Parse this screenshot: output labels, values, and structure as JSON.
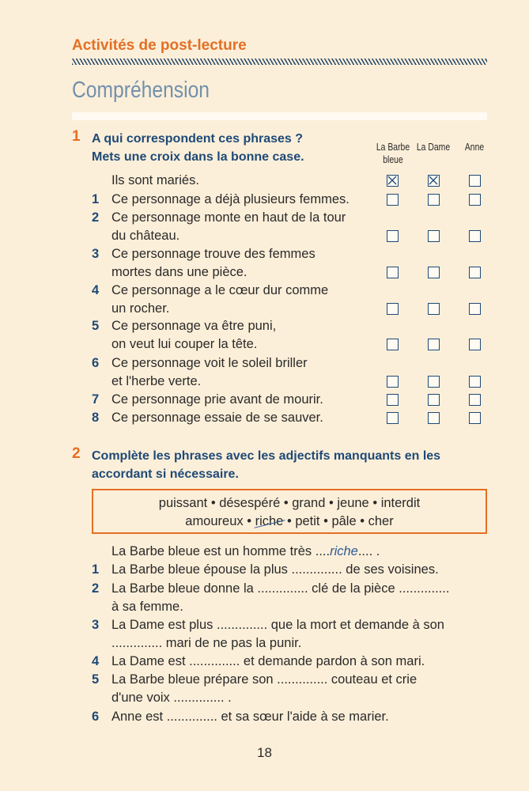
{
  "section_title": "Activités de post-lecture",
  "page_title": "Compréhension",
  "colors": {
    "accent": "#e46f24",
    "blue": "#1e4a78",
    "title": "#7290ad"
  },
  "q1": {
    "number": "1",
    "instruction_line1": "A qui correspondent ces phrases ?",
    "instruction_line2": "Mets une croix dans la bonne case.",
    "columns": [
      "La Barbe bleue",
      "La Dame",
      "Anne"
    ],
    "column_lines": [
      [
        "La Barbe",
        "bleue"
      ],
      [
        "La Dame"
      ],
      [
        "Anne"
      ]
    ],
    "items": [
      {
        "n": "",
        "lines": [
          "Ils sont mariés."
        ],
        "checked": [
          true,
          true,
          false
        ]
      },
      {
        "n": "1",
        "lines": [
          "Ce personnage a déjà plusieurs femmes."
        ],
        "checked": [
          false,
          false,
          false
        ]
      },
      {
        "n": "2",
        "lines": [
          "Ce personnage monte en haut de la tour",
          "du château."
        ],
        "checked": [
          false,
          false,
          false
        ]
      },
      {
        "n": "3",
        "lines": [
          "Ce personnage trouve des femmes",
          "mortes dans une pièce."
        ],
        "checked": [
          false,
          false,
          false
        ]
      },
      {
        "n": "4",
        "lines": [
          "Ce personnage a le cœur dur comme",
          "un rocher."
        ],
        "checked": [
          false,
          false,
          false
        ]
      },
      {
        "n": "5",
        "lines": [
          "Ce personnage va être puni,",
          "on veut lui couper la tête."
        ],
        "checked": [
          false,
          false,
          false
        ]
      },
      {
        "n": "6",
        "lines": [
          "Ce personnage voit le soleil briller",
          "et l'herbe verte."
        ],
        "checked": [
          false,
          false,
          false
        ]
      },
      {
        "n": "7",
        "lines": [
          "Ce personnage prie avant de mourir."
        ],
        "checked": [
          false,
          false,
          false
        ]
      },
      {
        "n": "8",
        "lines": [
          "Ce personnage essaie de se sauver."
        ],
        "checked": [
          false,
          false,
          false
        ]
      }
    ]
  },
  "q2": {
    "number": "2",
    "instruction_line1": "Complète les phrases avec les adjectifs manquants en les",
    "instruction_line2": "accordant si nécessaire.",
    "words_line1": [
      "puissant",
      "désespéré",
      "grand",
      "jeune",
      "interdit"
    ],
    "words_line2": [
      "amoureux",
      "riche",
      "petit",
      "pâle",
      "cher"
    ],
    "crossed_word": "riche",
    "example": {
      "before": "La Barbe bleue est un homme très ",
      "answer": "riche",
      "after": " ."
    },
    "items": [
      {
        "n": "1",
        "lines": [
          "La Barbe bleue épouse la plus .............. de ses voisines."
        ]
      },
      {
        "n": "2",
        "lines": [
          "La Barbe bleue donne la .............. clé de la pièce ..............",
          "à sa femme."
        ]
      },
      {
        "n": "3",
        "lines": [
          "La Dame est plus .............. que la mort et demande à son",
          ".............. mari de ne pas la punir."
        ]
      },
      {
        "n": "4",
        "lines": [
          "La Dame est .............. et demande pardon à son mari."
        ]
      },
      {
        "n": "5",
        "lines": [
          "La Barbe bleue prépare son .............. couteau et crie",
          "d'une voix .............. ."
        ]
      },
      {
        "n": "6",
        "lines": [
          "Anne est .............. et sa sœur l'aide à se marier."
        ]
      }
    ]
  },
  "page_number": "18"
}
